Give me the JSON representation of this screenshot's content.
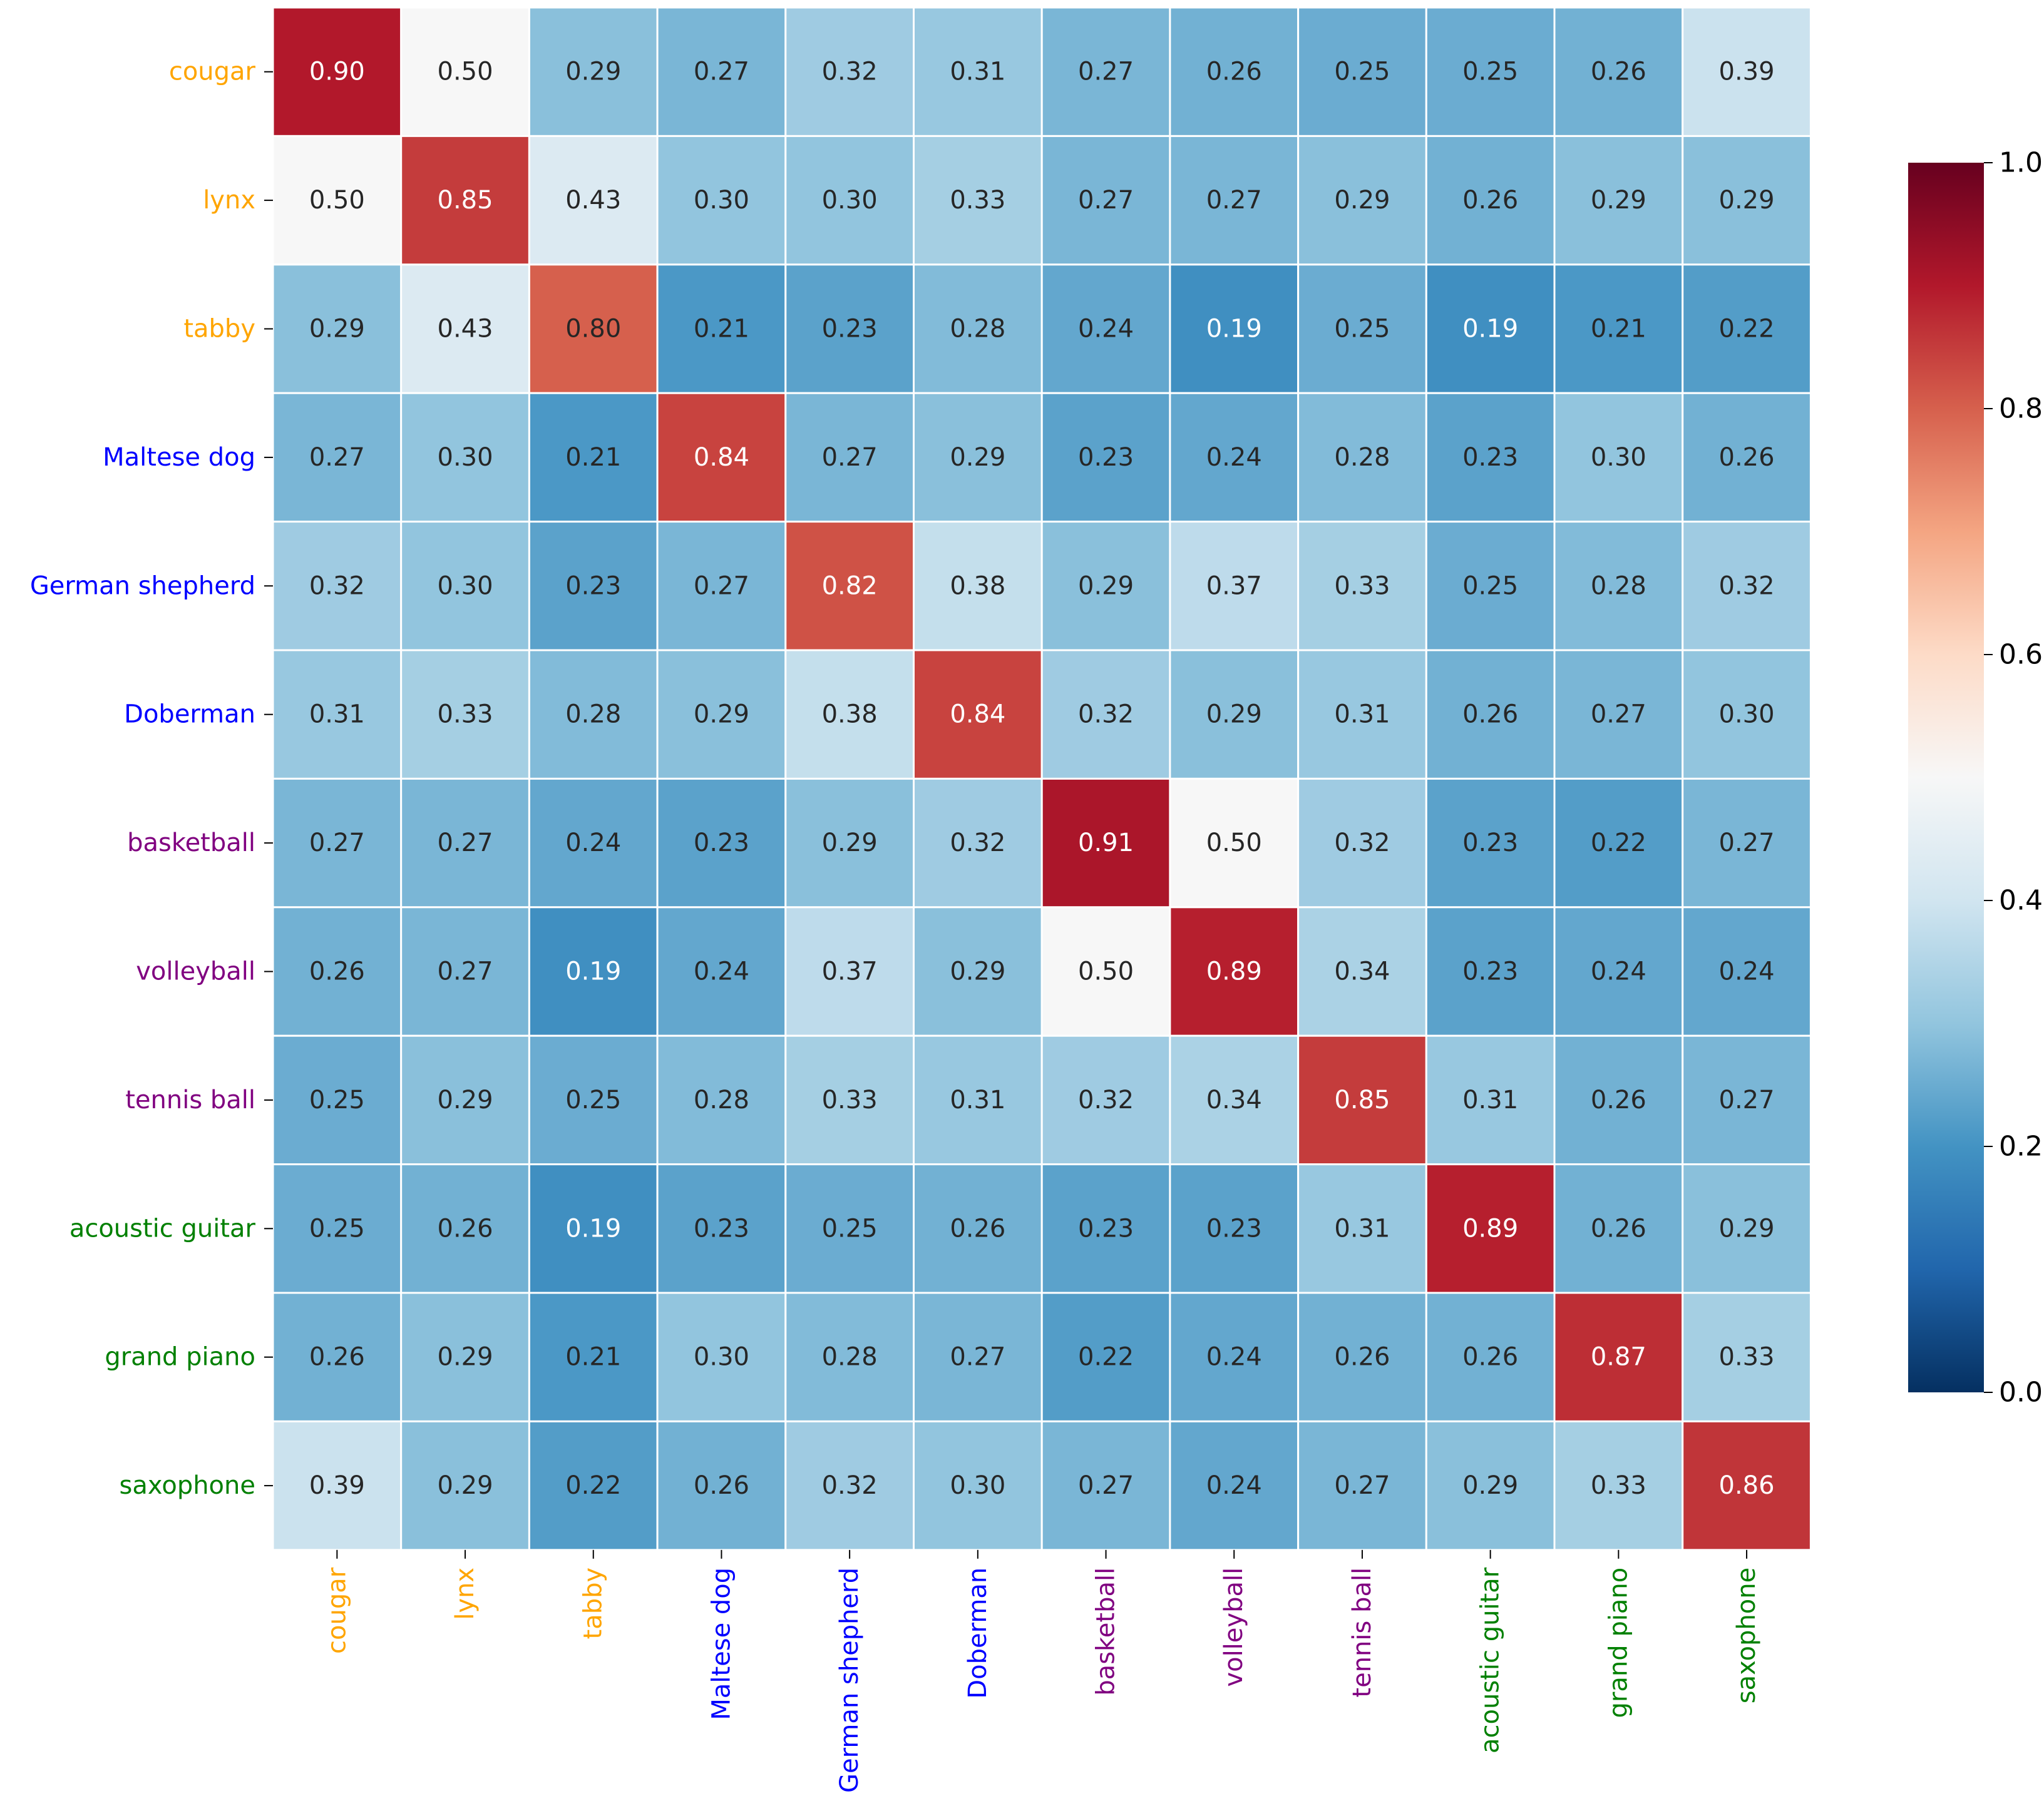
{
  "chart_data": {
    "type": "heatmap",
    "title": "",
    "xlabel": "",
    "ylabel": "",
    "labels": [
      "cougar",
      "lynx",
      "tabby",
      "Maltese dog",
      "German shepherd",
      "Doberman",
      "basketball",
      "volleyball",
      "tennis ball",
      "acoustic guitar",
      "grand piano",
      "saxophone"
    ],
    "label_groups": [
      0,
      0,
      0,
      1,
      1,
      1,
      2,
      2,
      2,
      3,
      3,
      3
    ],
    "group_colors": [
      "#ffa500",
      "#0000ff",
      "#800080",
      "#008000"
    ],
    "values": [
      [
        0.9,
        0.5,
        0.29,
        0.27,
        0.32,
        0.31,
        0.27,
        0.26,
        0.25,
        0.25,
        0.26,
        0.39
      ],
      [
        0.5,
        0.85,
        0.43,
        0.3,
        0.3,
        0.33,
        0.27,
        0.27,
        0.29,
        0.26,
        0.29,
        0.29
      ],
      [
        0.29,
        0.43,
        0.8,
        0.21,
        0.23,
        0.28,
        0.24,
        0.19,
        0.25,
        0.19,
        0.21,
        0.22
      ],
      [
        0.27,
        0.3,
        0.21,
        0.84,
        0.27,
        0.29,
        0.23,
        0.24,
        0.28,
        0.23,
        0.3,
        0.26
      ],
      [
        0.32,
        0.3,
        0.23,
        0.27,
        0.82,
        0.38,
        0.29,
        0.37,
        0.33,
        0.25,
        0.28,
        0.32
      ],
      [
        0.31,
        0.33,
        0.28,
        0.29,
        0.38,
        0.84,
        0.32,
        0.29,
        0.31,
        0.26,
        0.27,
        0.3
      ],
      [
        0.27,
        0.27,
        0.24,
        0.23,
        0.29,
        0.32,
        0.91,
        0.5,
        0.32,
        0.23,
        0.22,
        0.27
      ],
      [
        0.26,
        0.27,
        0.19,
        0.24,
        0.37,
        0.29,
        0.5,
        0.89,
        0.34,
        0.23,
        0.24,
        0.24
      ],
      [
        0.25,
        0.29,
        0.25,
        0.28,
        0.33,
        0.31,
        0.32,
        0.34,
        0.85,
        0.31,
        0.26,
        0.27
      ],
      [
        0.25,
        0.26,
        0.19,
        0.23,
        0.25,
        0.26,
        0.23,
        0.23,
        0.31,
        0.89,
        0.26,
        0.29
      ],
      [
        0.26,
        0.29,
        0.21,
        0.3,
        0.28,
        0.27,
        0.22,
        0.24,
        0.26,
        0.26,
        0.87,
        0.33
      ],
      [
        0.39,
        0.29,
        0.22,
        0.26,
        0.32,
        0.3,
        0.27,
        0.24,
        0.27,
        0.29,
        0.33,
        0.86
      ]
    ],
    "value_format": "0.00",
    "colormap": "RdBu_r",
    "vmin": 0.0,
    "vmax": 1.0,
    "colorbar_ticks": [
      "0.0",
      "0.2",
      "0.4",
      "0.6",
      "0.8",
      "1.0"
    ],
    "colorbar_stops": [
      "#053061",
      "#2166ac",
      "#4393c3",
      "#92c5de",
      "#d1e5f0",
      "#f7f7f7",
      "#fddbc7",
      "#f4a582",
      "#d6604d",
      "#b2182b",
      "#67001f"
    ],
    "cell_border_color": "#ffffff",
    "annotation_dark_color": "#262626",
    "annotation_light_color": "#ffffff"
  }
}
